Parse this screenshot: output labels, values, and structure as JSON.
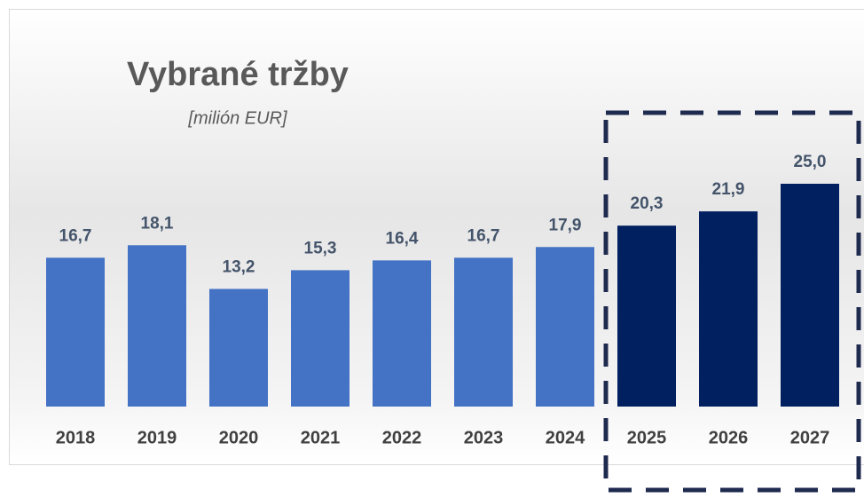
{
  "chart_data": {
    "type": "bar",
    "title": "Vybrané tržby",
    "subtitle": "[milión EUR]",
    "categories": [
      "2018",
      "2019",
      "2020",
      "2021",
      "2022",
      "2023",
      "2024",
      "2025",
      "2026",
      "2027"
    ],
    "values": [
      16.7,
      18.1,
      13.2,
      15.3,
      16.4,
      16.7,
      17.9,
      20.3,
      21.9,
      25.0
    ],
    "value_labels": [
      "16,7",
      "18,1",
      "13,2",
      "15,3",
      "16,4",
      "16,7",
      "17,9",
      "20,3",
      "21,9",
      "25,0"
    ],
    "colors": [
      "#4472c4",
      "#4472c4",
      "#4472c4",
      "#4472c4",
      "#4472c4",
      "#4472c4",
      "#4472c4",
      "#002060",
      "#002060",
      "#002060"
    ],
    "ylim": [
      0,
      25
    ]
  }
}
